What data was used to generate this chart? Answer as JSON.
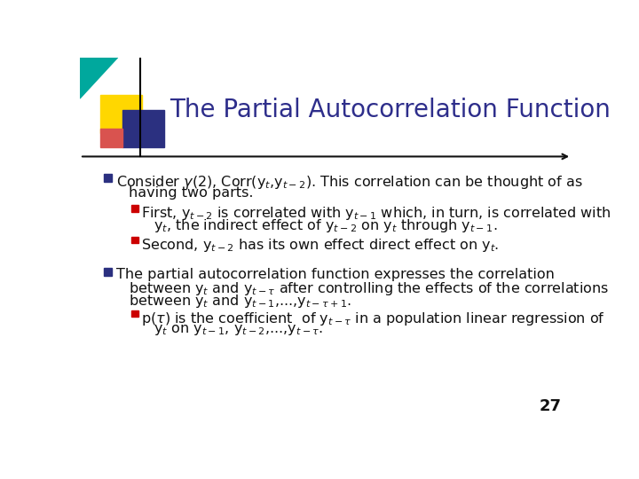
{
  "title": "The Partial Autocorrelation Function",
  "title_color": "#2E2E8B",
  "title_fontsize": 20,
  "bg_color": "#FFFFFF",
  "slide_number": "27",
  "arrow_color": "#111111",
  "bullet_color": "#2B3080",
  "sub_bullet_color": "#CC0000",
  "text_color": "#111111",
  "fs": 11.5
}
